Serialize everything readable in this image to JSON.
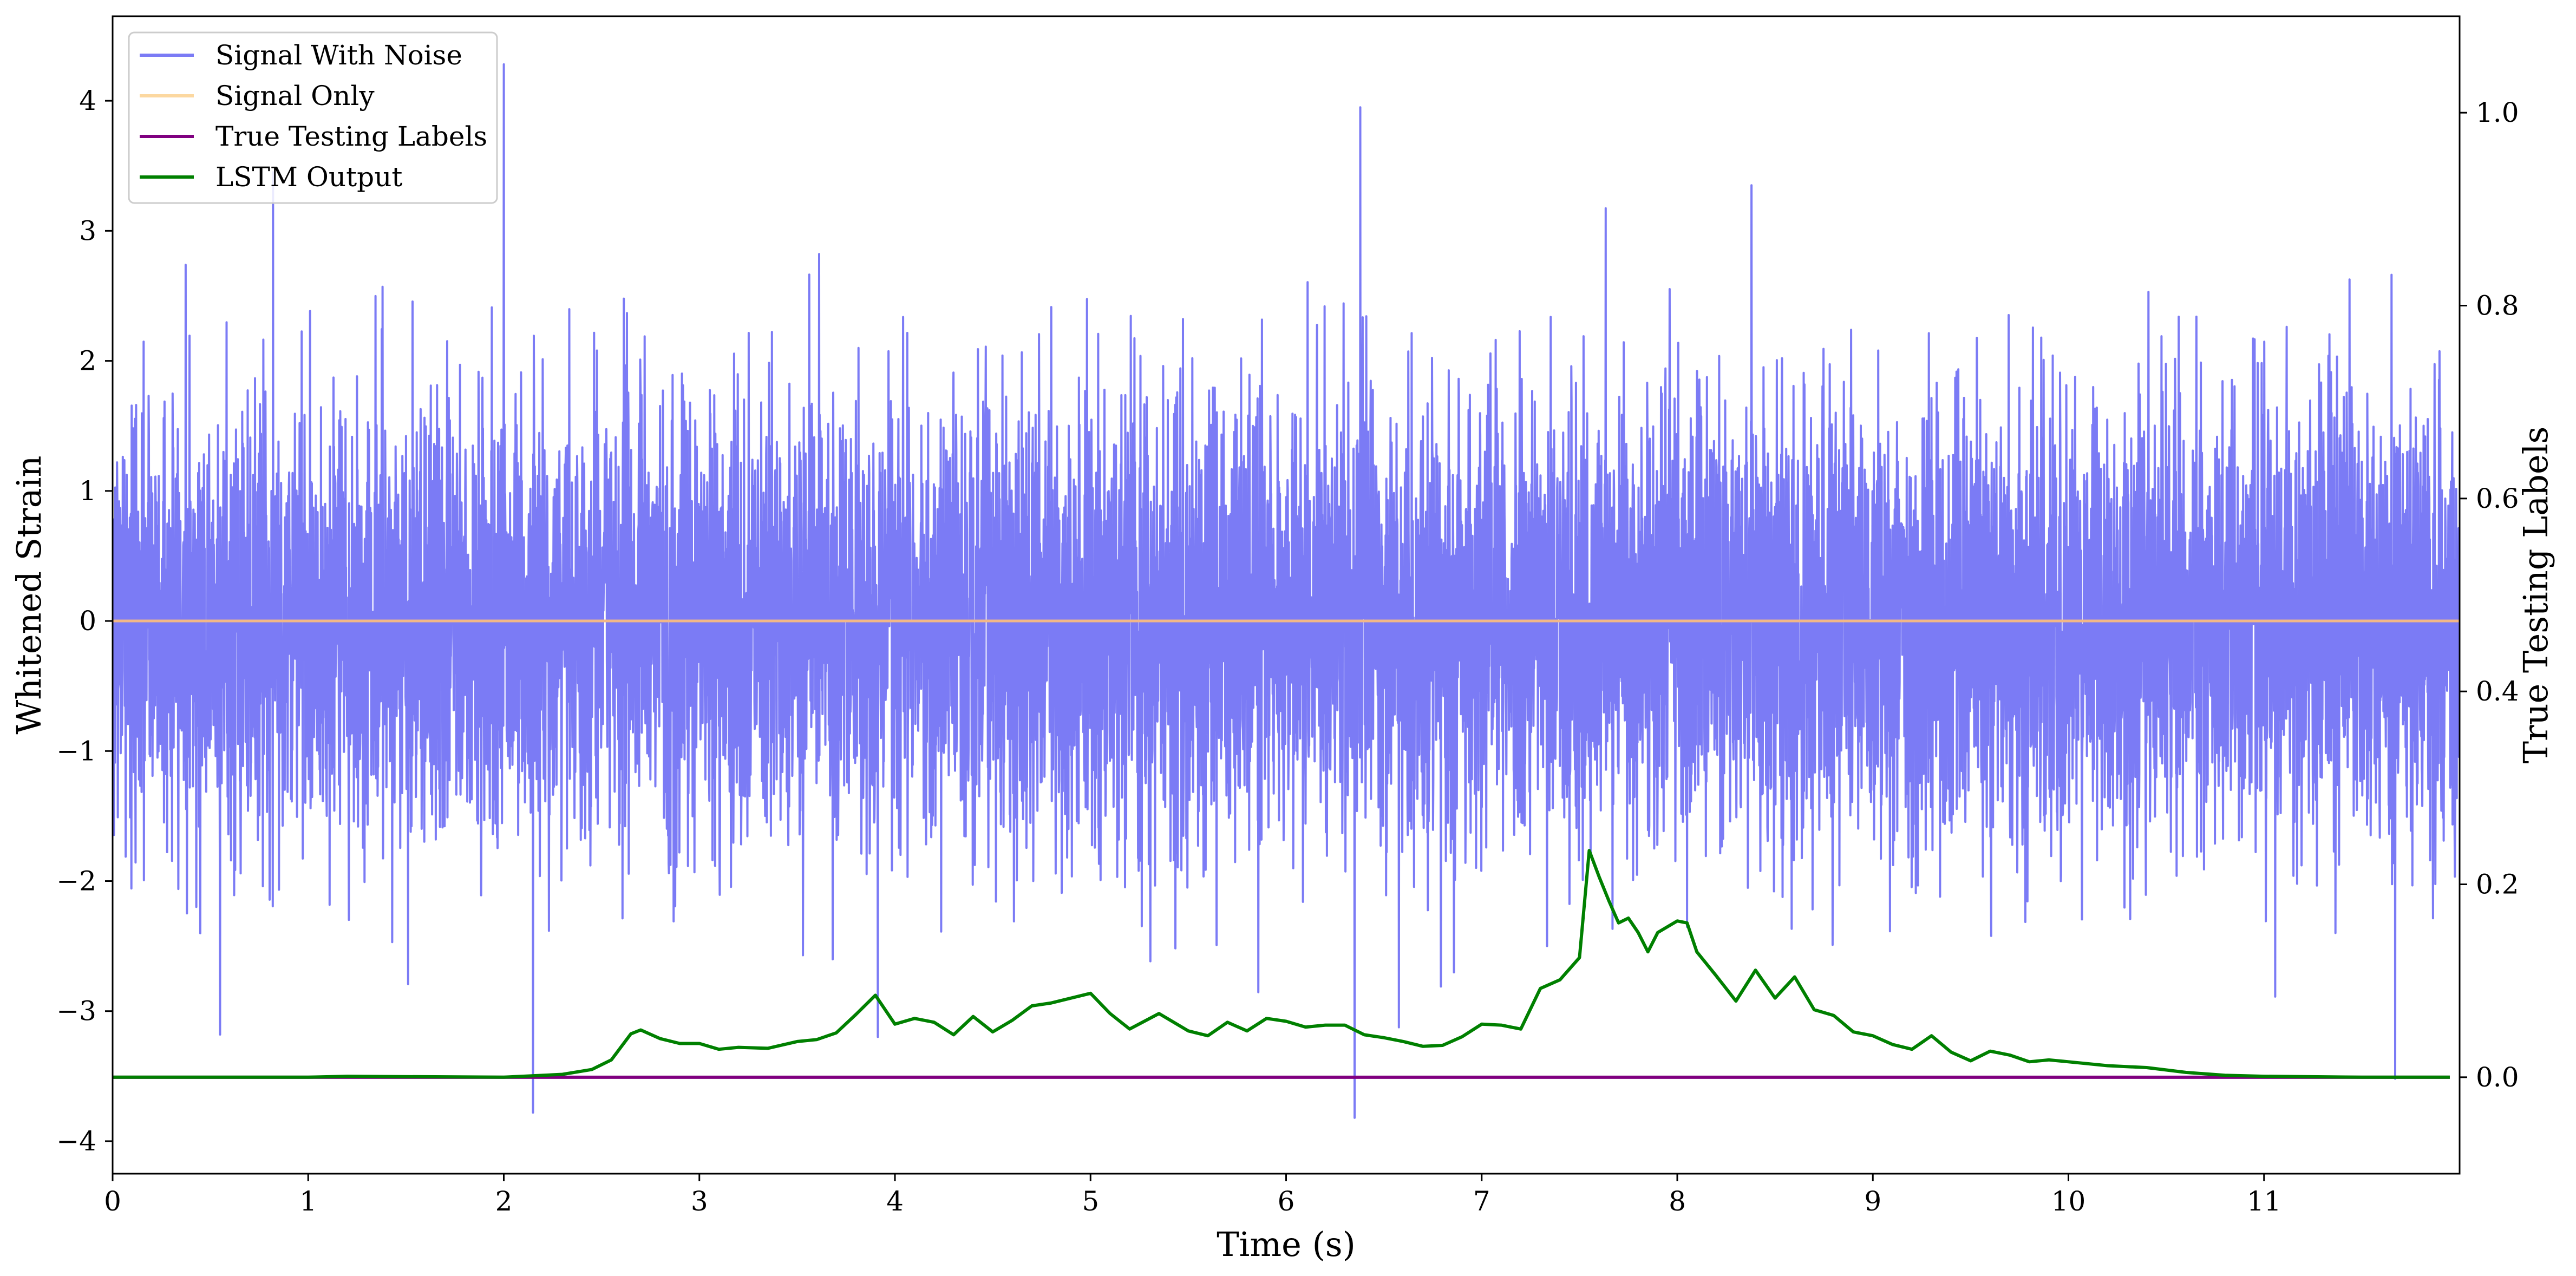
{
  "chart_data": {
    "type": "line",
    "title": "",
    "xlabel": "Time (s)",
    "ylabel": "Whitened Strain",
    "y2label": "True Testing Labels",
    "xlim": [
      0,
      12.0
    ],
    "ylim": [
      -4.25,
      4.65
    ],
    "y2lim": [
      -0.1,
      1.1
    ],
    "x_ticks": [
      0,
      1,
      2,
      3,
      4,
      5,
      6,
      7,
      8,
      9,
      10,
      11
    ],
    "y_ticks": [
      -4,
      -3,
      -2,
      -1,
      0,
      1,
      2,
      3,
      4
    ],
    "y2_ticks": [
      0.0,
      0.2,
      0.4,
      0.6,
      0.8,
      1.0
    ],
    "grid": false,
    "legend": {
      "placement": "upper-left",
      "entries": [
        {
          "label": "Signal With Noise",
          "color": "#7b7bf5"
        },
        {
          "label": "Signal Only",
          "color": "#fcd8a0"
        },
        {
          "label": "True Testing Labels",
          "color": "#800080"
        },
        {
          "label": "LSTM Output",
          "color": "#008000"
        }
      ]
    },
    "series": [
      {
        "name": "Signal With Noise",
        "axis": "left",
        "color": "#7b7bf5",
        "description_values": {
          "x_range": [
            0,
            12.0
          ],
          "typical_band": [
            -2.0,
            2.2
          ],
          "notable_peaks": [
            {
              "x": 2.0,
              "y": 4.28
            },
            {
              "x": 6.38,
              "y": 3.95
            },
            {
              "x": 0.82,
              "y": 3.45
            },
            {
              "x": 8.38,
              "y": 3.35
            },
            {
              "x": 6.35,
              "y": -3.82
            },
            {
              "x": 2.15,
              "y": -3.78
            },
            {
              "x": 11.67,
              "y": -3.52
            },
            {
              "x": 0.55,
              "y": -3.18
            }
          ]
        }
      },
      {
        "name": "Signal Only",
        "axis": "left",
        "color": "#fcd8a0",
        "x": [
          0,
          12.0
        ],
        "y": [
          0,
          0
        ]
      },
      {
        "name": "True Testing Labels",
        "axis": "right",
        "color": "#800080",
        "x": [
          0,
          11.95
        ],
        "y": [
          0,
          0
        ]
      },
      {
        "name": "LSTM Output",
        "axis": "right",
        "color": "#008000",
        "x": [
          0.0,
          1.0,
          1.2,
          2.0,
          2.3,
          2.45,
          2.55,
          2.65,
          2.7,
          2.8,
          2.9,
          3.0,
          3.1,
          3.2,
          3.35,
          3.5,
          3.6,
          3.7,
          3.8,
          3.9,
          4.0,
          4.1,
          4.2,
          4.3,
          4.4,
          4.5,
          4.6,
          4.7,
          4.8,
          4.9,
          5.0,
          5.1,
          5.2,
          5.35,
          5.5,
          5.6,
          5.7,
          5.8,
          5.9,
          6.0,
          6.1,
          6.2,
          6.3,
          6.4,
          6.5,
          6.6,
          6.7,
          6.8,
          6.9,
          7.0,
          7.1,
          7.2,
          7.3,
          7.4,
          7.5,
          7.55,
          7.6,
          7.65,
          7.7,
          7.75,
          7.8,
          7.85,
          7.9,
          8.0,
          8.05,
          8.1,
          8.2,
          8.3,
          8.4,
          8.5,
          8.6,
          8.7,
          8.8,
          8.9,
          9.0,
          9.1,
          9.2,
          9.3,
          9.4,
          9.5,
          9.6,
          9.7,
          9.8,
          9.9,
          10.0,
          10.2,
          10.4,
          10.6,
          10.8,
          11.0,
          11.5,
          11.95
        ],
        "y": [
          0.0,
          0.0,
          0.001,
          0.0,
          0.003,
          0.008,
          0.018,
          0.045,
          0.049,
          0.04,
          0.035,
          0.035,
          0.029,
          0.031,
          0.03,
          0.037,
          0.039,
          0.046,
          0.065,
          0.085,
          0.055,
          0.061,
          0.057,
          0.044,
          0.063,
          0.047,
          0.059,
          0.074,
          0.077,
          0.082,
          0.087,
          0.066,
          0.05,
          0.066,
          0.048,
          0.043,
          0.057,
          0.048,
          0.061,
          0.058,
          0.052,
          0.054,
          0.054,
          0.044,
          0.041,
          0.037,
          0.032,
          0.033,
          0.042,
          0.055,
          0.054,
          0.05,
          0.092,
          0.101,
          0.124,
          0.235,
          0.208,
          0.183,
          0.16,
          0.165,
          0.15,
          0.13,
          0.15,
          0.162,
          0.16,
          0.13,
          0.105,
          0.079,
          0.111,
          0.082,
          0.104,
          0.07,
          0.064,
          0.047,
          0.043,
          0.034,
          0.029,
          0.043,
          0.026,
          0.017,
          0.027,
          0.023,
          0.016,
          0.018,
          0.016,
          0.012,
          0.01,
          0.005,
          0.002,
          0.001,
          0.0,
          0.0
        ]
      }
    ]
  }
}
